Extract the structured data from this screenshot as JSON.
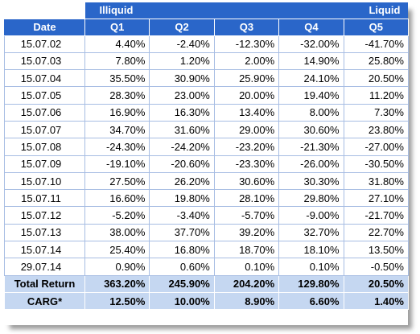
{
  "banner": {
    "left": "Illiquid",
    "right": "Liquid"
  },
  "columns": [
    "Date",
    "Q1",
    "Q2",
    "Q3",
    "Q4",
    "Q5"
  ],
  "rows": [
    {
      "date": "15.07.02",
      "values": [
        "4.40%",
        "-2.40%",
        "-12.30%",
        "-32.00%",
        "-41.70%"
      ]
    },
    {
      "date": "15.07.03",
      "values": [
        "7.80%",
        "1.20%",
        "2.00%",
        "14.90%",
        "25.80%"
      ]
    },
    {
      "date": "15.07.04",
      "values": [
        "35.50%",
        "30.90%",
        "25.90%",
        "24.10%",
        "20.50%"
      ]
    },
    {
      "date": "15.07.05",
      "values": [
        "28.30%",
        "23.00%",
        "20.00%",
        "19.40%",
        "11.20%"
      ]
    },
    {
      "date": "15.07.06",
      "values": [
        "16.90%",
        "16.30%",
        "13.40%",
        "8.00%",
        "7.30%"
      ]
    },
    {
      "date": "15.07.07",
      "values": [
        "34.70%",
        "31.60%",
        "29.00%",
        "30.60%",
        "23.80%"
      ]
    },
    {
      "date": "15.07.08",
      "values": [
        "-24.30%",
        "-24.20%",
        "-23.20%",
        "-21.30%",
        "-27.00%"
      ]
    },
    {
      "date": "15.07.09",
      "values": [
        "-19.10%",
        "-20.60%",
        "-23.30%",
        "-26.00%",
        "-30.50%"
      ]
    },
    {
      "date": "15.07.10",
      "values": [
        "27.50%",
        "26.20%",
        "30.60%",
        "30.30%",
        "31.80%"
      ]
    },
    {
      "date": "15.07.11",
      "values": [
        "16.60%",
        "19.80%",
        "28.10%",
        "29.80%",
        "27.10%"
      ]
    },
    {
      "date": "15.07.12",
      "values": [
        "-5.20%",
        "-3.40%",
        "-5.70%",
        "-9.00%",
        "-21.70%"
      ]
    },
    {
      "date": "15.07.13",
      "values": [
        "38.00%",
        "37.70%",
        "39.20%",
        "32.70%",
        "22.70%"
      ]
    },
    {
      "date": "15.07.14",
      "values": [
        "25.40%",
        "16.80%",
        "18.70%",
        "18.10%",
        "13.50%"
      ]
    },
    {
      "date": "29.07.14",
      "values": [
        "0.90%",
        "0.60%",
        "0.10%",
        "0.10%",
        "-0.50%"
      ]
    }
  ],
  "summary": [
    {
      "label": "Total Return",
      "values": [
        "363.20%",
        "245.90%",
        "204.20%",
        "129.80%",
        "20.50%"
      ]
    },
    {
      "label": "CARG*",
      "values": [
        "12.50%",
        "10.00%",
        "8.90%",
        "6.60%",
        "1.40%"
      ]
    }
  ]
}
